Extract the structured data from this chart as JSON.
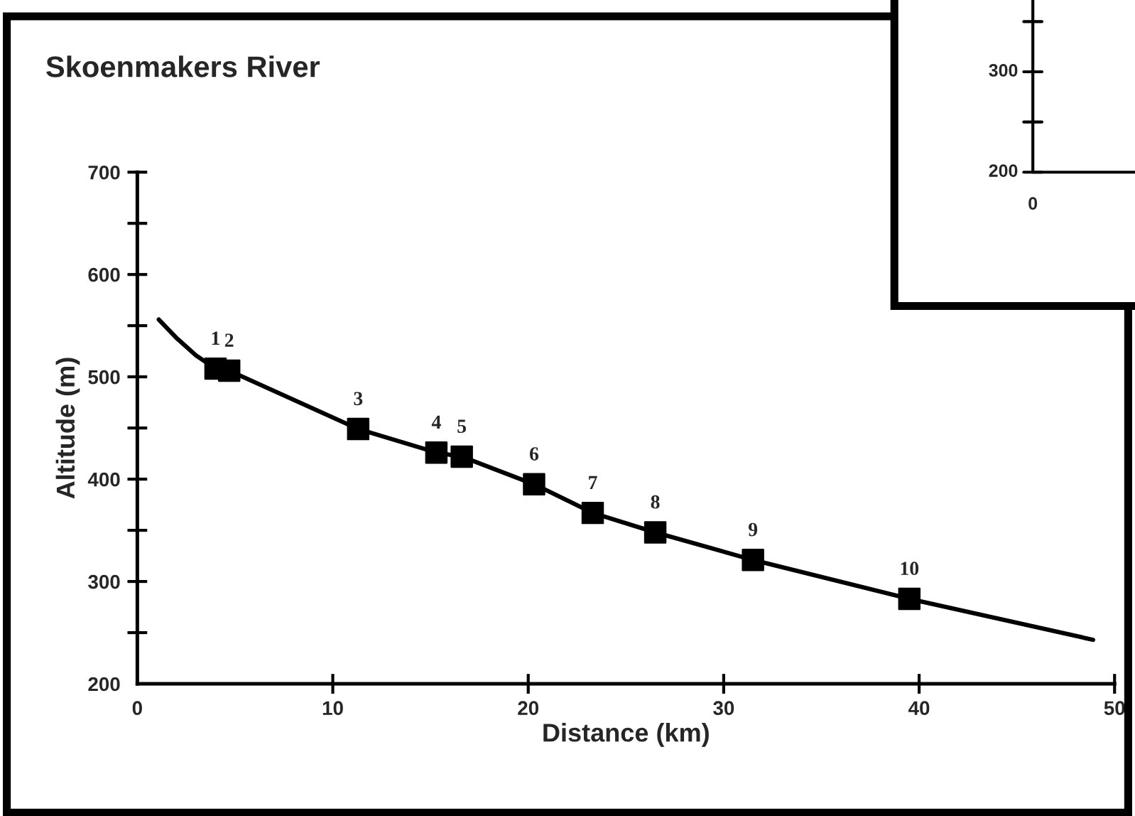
{
  "chart_data": [
    {
      "type": "line",
      "title": "Skoenmakers River",
      "xlabel": "Distance (km)",
      "ylabel": "Altitude (m)",
      "xlim": [
        0,
        50
      ],
      "xticks": [
        0,
        10,
        20,
        30,
        40,
        50
      ],
      "ylim": [
        200,
        700
      ],
      "yticks": [
        200,
        {
          "value": 250,
          "label": null
        },
        300,
        {
          "value": 350,
          "label": null
        },
        400,
        {
          "value": 450,
          "label": null
        },
        500,
        {
          "value": 550,
          "label": null
        },
        600,
        {
          "value": 650,
          "label": null
        },
        700
      ],
      "grid": false,
      "legend": false,
      "series": [
        {
          "type": "line",
          "color": "#000000",
          "marker": "none",
          "line_style": "solid",
          "x": [
            1.1,
            2,
            3,
            4.0,
            4.7,
            11.3,
            15.3,
            16.6,
            20.3,
            23.3,
            26.5,
            31.5,
            39.5,
            48.9
          ],
          "values": [
            556,
            538,
            521,
            508,
            506,
            449,
            426,
            422,
            395,
            367,
            348,
            321,
            283,
            243
          ]
        },
        {
          "type": "scatter",
          "color": "#000000",
          "marker": "square",
          "x": [
            4.0,
            4.7,
            11.3,
            15.3,
            16.6,
            20.3,
            23.3,
            26.5,
            31.5,
            39.5
          ],
          "values": [
            508,
            506,
            449,
            426,
            422,
            395,
            367,
            348,
            321,
            283
          ]
        }
      ],
      "annotations": [
        {
          "text": "1",
          "x": 4.0,
          "y": 508
        },
        {
          "text": "2",
          "x": 4.7,
          "y": 506
        },
        {
          "text": "3",
          "x": 11.3,
          "y": 449
        },
        {
          "text": "4",
          "x": 15.3,
          "y": 426
        },
        {
          "text": "5",
          "x": 16.6,
          "y": 422
        },
        {
          "text": "6",
          "x": 20.3,
          "y": 395
        },
        {
          "text": "7",
          "x": 23.3,
          "y": 367
        },
        {
          "text": "8",
          "x": 26.5,
          "y": 348
        },
        {
          "text": "9",
          "x": 31.5,
          "y": 321
        },
        {
          "text": "10",
          "x": 39.5,
          "y": 283
        }
      ]
    },
    {
      "type": "other",
      "annotations": [
        "300",
        "200",
        "0"
      ]
    }
  ]
}
